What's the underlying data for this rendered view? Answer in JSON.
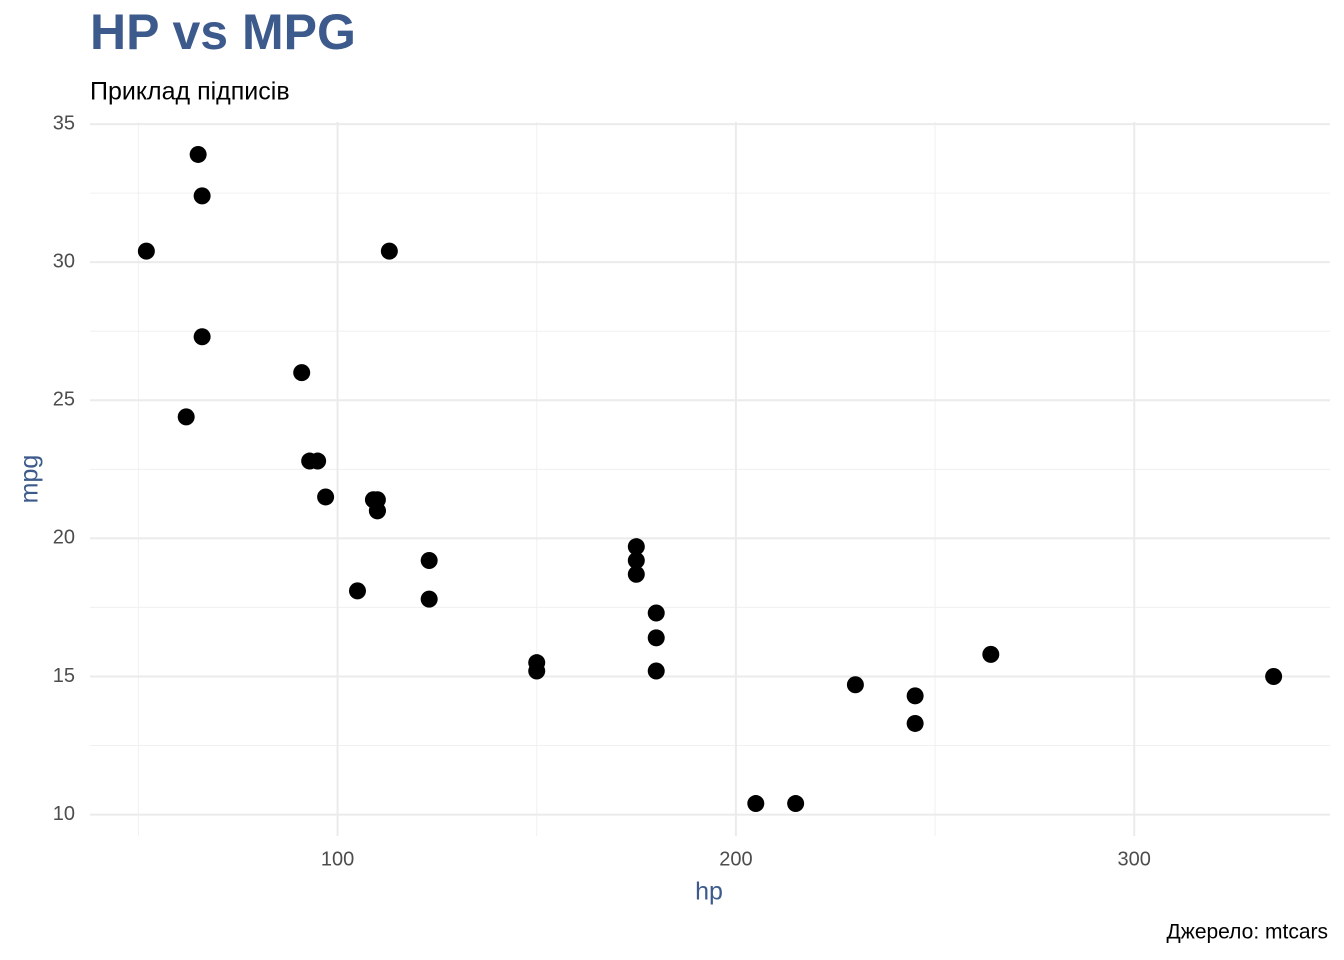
{
  "chart_data": {
    "type": "scatter",
    "title": "HP vs MPG",
    "subtitle": "Приклад підписів",
    "caption": "Джерело: mtcars",
    "x_label": "hp",
    "y_label": "mpg",
    "color": "#000000",
    "title_color": "#3d5a8c",
    "grid": true,
    "x": [
      110,
      110,
      93,
      110,
      175,
      105,
      245,
      62,
      95,
      123,
      123,
      180,
      180,
      180,
      205,
      215,
      230,
      66,
      52,
      65,
      97,
      150,
      150,
      245,
      175,
      66,
      91,
      113,
      264,
      175,
      335,
      109
    ],
    "values": [
      21,
      21,
      22.8,
      21.4,
      18.7,
      18.1,
      14.3,
      24.4,
      22.8,
      19.2,
      17.8,
      16.4,
      17.3,
      15.2,
      10.4,
      10.4,
      14.7,
      32.4,
      30.4,
      33.9,
      21.5,
      15.5,
      15.2,
      13.3,
      19.2,
      27.3,
      26,
      30.4,
      15.8,
      19.7,
      15,
      21.4
    ],
    "xlim": [
      37.85,
      349.15
    ],
    "ylim": [
      9.225,
      35.075
    ],
    "xticks": [
      100,
      200,
      300
    ],
    "yticks": [
      10,
      15,
      20,
      25,
      30,
      35
    ],
    "x_minor_grid": [
      50,
      150,
      250
    ],
    "y_minor_grid": [
      12.5,
      17.5,
      22.5,
      27.5,
      32.5
    ]
  }
}
